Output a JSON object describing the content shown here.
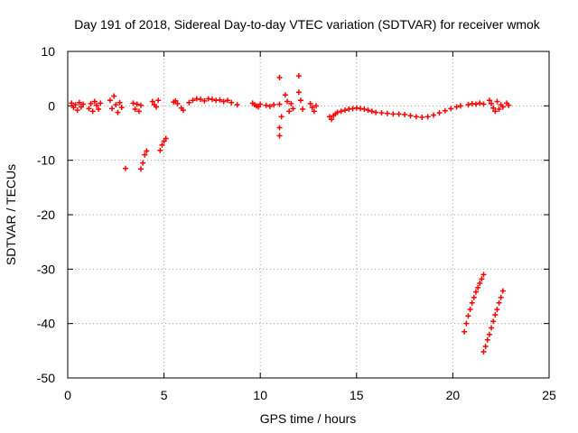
{
  "chart_data": {
    "type": "scatter",
    "title": "Day 191 of 2018, Sidereal Day-to-day VTEC variation (SDTVAR) for receiver wmok",
    "xlabel": "GPS time / hours",
    "ylabel": "SDTVAR / TECUs",
    "xlim": [
      0,
      25
    ],
    "ylim": [
      -50,
      10
    ],
    "xticks": [
      0,
      5,
      10,
      15,
      20,
      25
    ],
    "yticks": [
      10,
      0,
      -10,
      -20,
      -30,
      -40,
      -50
    ],
    "grid": true,
    "marker": "+",
    "color": "#ff0000",
    "series": [
      {
        "name": "SDTVAR",
        "points": [
          [
            0.2,
            0.5
          ],
          [
            0.3,
            -0.3
          ],
          [
            0.4,
            0.2
          ],
          [
            0.5,
            -0.8
          ],
          [
            0.6,
            0.6
          ],
          [
            0.7,
            -0.2
          ],
          [
            0.8,
            0.3
          ],
          [
            1.1,
            -0.5
          ],
          [
            1.2,
            0.4
          ],
          [
            1.3,
            -1.0
          ],
          [
            1.4,
            0.8
          ],
          [
            1.5,
            0.1
          ],
          [
            1.6,
            -0.6
          ],
          [
            1.7,
            0.5
          ],
          [
            2.2,
            1.0
          ],
          [
            2.3,
            -0.5
          ],
          [
            2.4,
            1.8
          ],
          [
            2.5,
            0.2
          ],
          [
            2.6,
            -1.2
          ],
          [
            2.7,
            0.6
          ],
          [
            2.8,
            -0.3
          ],
          [
            3.4,
            0.5
          ],
          [
            3.5,
            -0.6
          ],
          [
            3.6,
            0.3
          ],
          [
            3.7,
            -1.0
          ],
          [
            3.8,
            0.1
          ],
          [
            4.4,
            0.8
          ],
          [
            4.5,
            0.2
          ],
          [
            4.6,
            -0.2
          ],
          [
            4.7,
            1.0
          ],
          [
            5.5,
            0.7
          ],
          [
            5.6,
            0.9
          ],
          [
            5.7,
            0.4
          ],
          [
            5.9,
            -0.4
          ],
          [
            6.0,
            -0.8
          ],
          [
            6.3,
            0.6
          ],
          [
            6.5,
            1.0
          ],
          [
            6.7,
            1.3
          ],
          [
            6.9,
            1.2
          ],
          [
            7.1,
            0.9
          ],
          [
            7.3,
            1.3
          ],
          [
            7.5,
            1.2
          ],
          [
            7.7,
            1.0
          ],
          [
            7.9,
            1.1
          ],
          [
            8.1,
            0.8
          ],
          [
            8.3,
            1.0
          ],
          [
            8.5,
            0.6
          ],
          [
            8.8,
            0.2
          ],
          [
            9.6,
            0.5
          ],
          [
            9.7,
            0.2
          ],
          [
            9.8,
            0.0
          ],
          [
            9.9,
            -0.2
          ],
          [
            10.0,
            0.3
          ],
          [
            10.3,
            0.1
          ],
          [
            10.5,
            -0.1
          ],
          [
            10.7,
            0.2
          ],
          [
            11.0,
            5.2
          ],
          [
            11.0,
            0.3
          ],
          [
            11.1,
            -2.0
          ],
          [
            11.0,
            -4.0
          ],
          [
            11.0,
            -5.5
          ],
          [
            11.3,
            2.0
          ],
          [
            11.4,
            0.8
          ],
          [
            11.5,
            -1.0
          ],
          [
            11.6,
            0.4
          ],
          [
            11.7,
            -0.5
          ],
          [
            12.0,
            5.5
          ],
          [
            12.0,
            2.5
          ],
          [
            12.1,
            1.0
          ],
          [
            12.2,
            -0.6
          ],
          [
            12.6,
            0.4
          ],
          [
            12.7,
            -0.3
          ],
          [
            12.8,
            -1.0
          ],
          [
            12.9,
            0.0
          ],
          [
            13.6,
            -2.0
          ],
          [
            13.7,
            -2.5
          ],
          [
            13.8,
            -1.8
          ],
          [
            13.9,
            -1.5
          ],
          [
            14.0,
            -1.2
          ],
          [
            14.2,
            -1.0
          ],
          [
            14.4,
            -0.8
          ],
          [
            14.6,
            -0.6
          ],
          [
            14.8,
            -0.5
          ],
          [
            15.0,
            -0.4
          ],
          [
            15.2,
            -0.5
          ],
          [
            15.4,
            -0.6
          ],
          [
            15.6,
            -0.8
          ],
          [
            15.8,
            -1.0
          ],
          [
            16.0,
            -1.2
          ],
          [
            16.3,
            -1.3
          ],
          [
            16.6,
            -1.4
          ],
          [
            16.9,
            -1.5
          ],
          [
            17.2,
            -1.5
          ],
          [
            17.5,
            -1.6
          ],
          [
            17.8,
            -1.8
          ],
          [
            18.1,
            -2.0
          ],
          [
            18.4,
            -2.1
          ],
          [
            18.7,
            -2.0
          ],
          [
            19.0,
            -1.7
          ],
          [
            19.3,
            -1.3
          ],
          [
            19.6,
            -0.9
          ],
          [
            19.9,
            -0.5
          ],
          [
            20.2,
            -0.2
          ],
          [
            20.4,
            0.0
          ],
          [
            20.8,
            0.2
          ],
          [
            21.0,
            0.4
          ],
          [
            21.2,
            0.3
          ],
          [
            21.4,
            0.5
          ],
          [
            21.6,
            0.3
          ],
          [
            21.9,
            1.0
          ],
          [
            22.0,
            0.4
          ],
          [
            22.1,
            -0.4
          ],
          [
            22.2,
            -1.0
          ],
          [
            22.3,
            0.8
          ],
          [
            22.4,
            -0.6
          ],
          [
            22.5,
            0.2
          ],
          [
            22.6,
            -0.2
          ],
          [
            22.8,
            0.5
          ],
          [
            22.9,
            0.1
          ],
          [
            3.0,
            -11.5
          ],
          [
            3.8,
            -11.6
          ],
          [
            3.9,
            -10.5
          ],
          [
            4.0,
            -9.0
          ],
          [
            4.1,
            -8.3
          ],
          [
            4.8,
            -8.2
          ],
          [
            4.9,
            -7.2
          ],
          [
            5.0,
            -6.5
          ],
          [
            5.1,
            -6.0
          ],
          [
            20.6,
            -41.5
          ],
          [
            20.7,
            -40.0
          ],
          [
            20.8,
            -38.6
          ],
          [
            20.9,
            -37.4
          ],
          [
            21.0,
            -36.2
          ],
          [
            21.1,
            -35.2
          ],
          [
            21.2,
            -34.2
          ],
          [
            21.3,
            -33.4
          ],
          [
            21.4,
            -32.6
          ],
          [
            21.5,
            -31.8
          ],
          [
            21.6,
            -31.0
          ],
          [
            21.6,
            -45.2
          ],
          [
            21.7,
            -44.2
          ],
          [
            21.8,
            -43.0
          ],
          [
            21.9,
            -42.0
          ],
          [
            22.0,
            -40.8
          ],
          [
            22.1,
            -39.6
          ],
          [
            22.2,
            -38.4
          ],
          [
            22.3,
            -37.4
          ],
          [
            22.4,
            -36.2
          ],
          [
            22.5,
            -35.2
          ],
          [
            22.6,
            -34.0
          ]
        ]
      }
    ]
  }
}
